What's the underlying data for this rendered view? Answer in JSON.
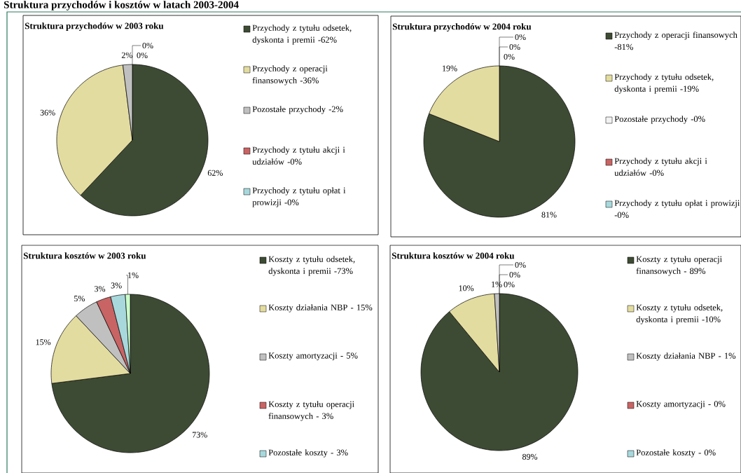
{
  "chart_data": [
    {
      "type": "pie",
      "title": "Struktura przychodów w 2003 roku",
      "annotations": [
        "Struktura przychodów i kosztów w latach 2003-2004"
      ],
      "legend": "right",
      "categories": [
        "Przychody z tytułu odsetek, dyskonta i premii -62%",
        "Przychody z operacji finansowych -36%",
        "Pozostałe przychody -2%",
        "Przychody z tytułu akcji i udziałów -0%",
        "Przychody z tytułu opłat i prowizji -0%"
      ],
      "values": [
        62,
        36,
        2,
        0,
        0
      ],
      "value_labels": [
        "62%",
        "36%",
        "2%",
        "0%",
        "0%"
      ],
      "colors": [
        "#3e4b34",
        "#e3dca0",
        "#c0c0c0",
        "#c86464",
        "#a8d8dc"
      ]
    },
    {
      "type": "pie",
      "title": "Struktura przychodów w 2004 roku",
      "legend": "right",
      "categories": [
        "Przychody z operacji finansowych -81%",
        "Przychody z tytułu odsetek, dyskonta i premii -19%",
        "Pozostałe przychody -0%",
        "Przychody z tytułu akcji i udziałów -0%",
        "Przychody z tytułu opłat i prowizji -0%"
      ],
      "values": [
        81,
        19,
        0,
        0,
        0
      ],
      "value_labels": [
        "81%",
        "19%",
        "0%",
        "0%",
        "0%"
      ],
      "colors": [
        "#3e4b34",
        "#e3dca0",
        "#f2f2f2",
        "#c86464",
        "#a8d8dc"
      ]
    },
    {
      "type": "pie",
      "title": "Struktura kosztów w 2003 roku",
      "legend": "right",
      "categories": [
        "Koszty z tytułu odsetek, dyskonta i premii -73%",
        "Koszty działania NBP - 15%",
        "Koszty amortyzacji - 5%",
        "Koszty z tytułu operacji finansowych - 3%",
        "Pozostałe koszty - 3%",
        null
      ],
      "values": [
        73,
        15,
        5,
        3,
        3,
        1
      ],
      "value_labels": [
        "73%",
        "15%",
        "5%",
        "3%",
        "3%",
        "1%"
      ],
      "colors": [
        "#3e4b34",
        "#e3dca0",
        "#c0c0c0",
        "#c86464",
        "#a8d8dc",
        "#ccffcc"
      ]
    },
    {
      "type": "pie",
      "title": "Struktura kosztów w 2004 roku",
      "legend": "right",
      "categories": [
        "Koszty z tytułu operacji finansowych - 89%",
        "Koszty z tytułu odsetek, dyskonta i premii -10%",
        "Koszty działania NBP - 1%",
        "Koszty amortyzacji - 0%",
        "Pozostałe koszty - 0%",
        null
      ],
      "values": [
        89,
        10,
        1,
        0,
        0,
        0
      ],
      "value_labels": [
        "89%",
        "10%",
        "1%",
        "0%",
        "0%",
        "0%"
      ],
      "colors": [
        "#3e4b34",
        "#e3dca0",
        "#c0c0c0",
        "#c86464",
        "#a8d8dc",
        "#ccffcc"
      ]
    }
  ]
}
